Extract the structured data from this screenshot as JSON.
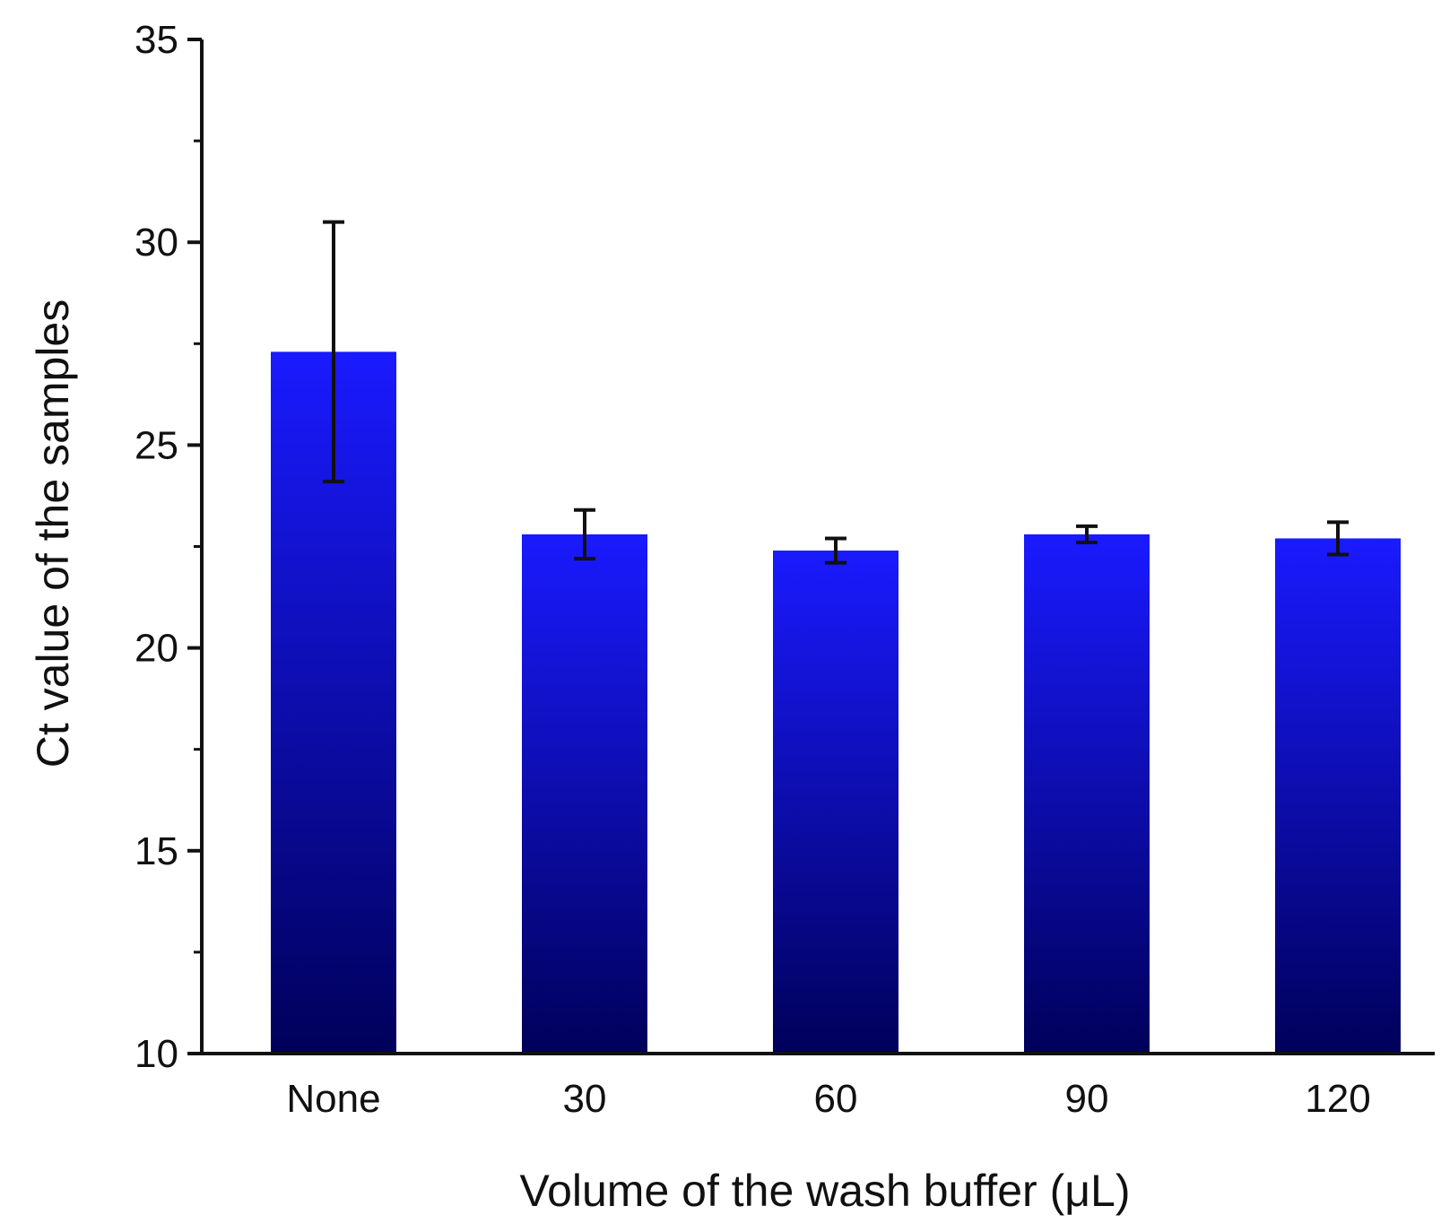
{
  "chart_data": {
    "type": "bar",
    "title": "",
    "xlabel": "Volume of the wash buffer (μL)",
    "ylabel": "Ct value of the samples",
    "categories": [
      "None",
      "30",
      "60",
      "90",
      "120"
    ],
    "values": [
      27.3,
      22.8,
      22.4,
      22.8,
      22.7
    ],
    "error_low": [
      24.1,
      22.2,
      22.1,
      22.6,
      22.3
    ],
    "error_high": [
      30.5,
      23.4,
      22.7,
      23.0,
      23.1
    ],
    "ylim": [
      10,
      35
    ],
    "yticks": [
      10,
      15,
      20,
      25,
      30,
      35
    ],
    "grid": false,
    "legend": "none",
    "colors": {
      "bar_top": "#1a1aff",
      "bar_bottom": "#00005a",
      "axis": "#111111",
      "error_bar": "#111111"
    }
  }
}
